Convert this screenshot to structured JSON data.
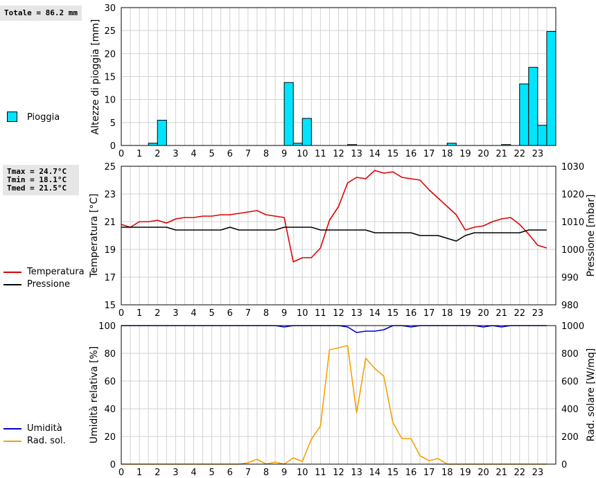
{
  "panels": {
    "rain": {
      "total_text": "Totale = 86.2 mm",
      "legend": [
        {
          "label": "Pioggia",
          "color": "#00e5ff"
        }
      ],
      "y_label": "Altezze di pioggia [mm]"
    },
    "temp": {
      "stats": [
        "Tmax = 24.7°C",
        "Tmin = 18.1°C",
        "Tmed = 21.5°C"
      ],
      "legend": [
        {
          "label": "Temperatura",
          "color": "#dd0000"
        },
        {
          "label": "Pressione",
          "color": "#000000"
        }
      ],
      "y_label_left": "Temperatura [°C]",
      "y_label_right": "Pressione [mbar]"
    },
    "hum": {
      "legend": [
        {
          "label": "Umidità",
          "color": "#0000cc"
        },
        {
          "label": "Rad. sol.",
          "color": "#f5a000"
        }
      ],
      "y_label_left": "Umidità relativa [%]",
      "y_label_right": "Rad. solare [W/mq]"
    }
  },
  "chart_data": [
    {
      "type": "bar",
      "x_ticks": [
        "0",
        "1",
        "2",
        "3",
        "4",
        "5",
        "6",
        "7",
        "8",
        "9",
        "10",
        "11",
        "12",
        "13",
        "14",
        "15",
        "16",
        "17",
        "18",
        "19",
        "20",
        "21",
        "22",
        "23"
      ],
      "xlim": [
        0,
        24
      ],
      "ylim": [
        0,
        30
      ],
      "y_ticks": [
        "0",
        "5",
        "10",
        "15",
        "20",
        "25",
        "30"
      ],
      "ylabel": "Altezze di pioggia [mm]",
      "grid": true,
      "series": [
        {
          "name": "Pioggia",
          "color": "#00e5ff",
          "x": [
            2,
            9,
            9.5,
            10,
            12.5,
            18,
            21,
            22,
            22.5,
            23,
            23.5
          ],
          "values": [
            5.5,
            13.7,
            0.5,
            5.9,
            0.2,
            0.5,
            0.2,
            13.4,
            17,
            4.4,
            24.8
          ],
          "extra_small": [
            {
              "x": 1.5,
              "value": 0.5
            }
          ]
        }
      ]
    },
    {
      "type": "line",
      "x_ticks": [
        "0",
        "1",
        "2",
        "3",
        "4",
        "5",
        "6",
        "7",
        "8",
        "9",
        "10",
        "11",
        "12",
        "13",
        "14",
        "15",
        "16",
        "17",
        "18",
        "19",
        "20",
        "21",
        "22",
        "23"
      ],
      "xlim": [
        0,
        24
      ],
      "ylim": [
        15,
        25
      ],
      "y_ticks": [
        "15",
        "17",
        "19",
        "21",
        "23",
        "25"
      ],
      "ylim_right": [
        980,
        1030
      ],
      "y_ticks_right": [
        "980",
        "990",
        "1000",
        "1010",
        "1020",
        "1030"
      ],
      "ylabel": "Temperatura [°C]",
      "ylabel_right": "Pressione [mbar]",
      "grid": true,
      "series": [
        {
          "name": "Temperatura",
          "color": "#dd0000",
          "axis": "left",
          "x": [
            0,
            0.5,
            1,
            1.5,
            2,
            2.5,
            3,
            3.5,
            4,
            4.5,
            5,
            5.5,
            6,
            6.5,
            7,
            7.5,
            8,
            8.5,
            9,
            9.5,
            10,
            10.5,
            11,
            11.5,
            12,
            12.5,
            13,
            13.5,
            14,
            14.5,
            15,
            15.5,
            16,
            16.5,
            17,
            17.5,
            18,
            18.5,
            19,
            19.5,
            20,
            20.5,
            21,
            21.5,
            22,
            22.5,
            23,
            23.5
          ],
          "values": [
            20.8,
            20.6,
            21.0,
            21.0,
            21.1,
            20.9,
            21.2,
            21.3,
            21.3,
            21.4,
            21.4,
            21.5,
            21.5,
            21.6,
            21.7,
            21.8,
            21.5,
            21.4,
            21.3,
            18.1,
            18.4,
            18.4,
            19.1,
            21.1,
            22.1,
            23.8,
            24.2,
            24.1,
            24.7,
            24.5,
            24.6,
            24.2,
            24.1,
            24.0,
            23.3,
            22.7,
            22.1,
            21.5,
            20.4,
            20.6,
            20.7,
            21.0,
            21.2,
            21.3,
            20.8,
            20.1,
            19.3,
            19.1
          ]
        },
        {
          "name": "Pressione",
          "color": "#000000",
          "axis": "right",
          "x": [
            0,
            0.5,
            1,
            1.5,
            2,
            2.5,
            3,
            3.5,
            4,
            4.5,
            5,
            5.5,
            6,
            6.5,
            7,
            7.5,
            8,
            8.5,
            9,
            9.5,
            10,
            10.5,
            11,
            11.5,
            12,
            12.5,
            13,
            13.5,
            14,
            14.5,
            15,
            15.5,
            16,
            16.5,
            17,
            17.5,
            18,
            18.5,
            19,
            19.5,
            20,
            20.5,
            21,
            21.5,
            22,
            22.5,
            23,
            23.5
          ],
          "values": [
            1008,
            1008,
            1008,
            1008,
            1008,
            1008,
            1007,
            1007,
            1007,
            1007,
            1007,
            1007,
            1008,
            1007,
            1007,
            1007,
            1007,
            1007,
            1008,
            1008,
            1008,
            1008,
            1007,
            1007,
            1007,
            1007,
            1007,
            1007,
            1006,
            1006,
            1006,
            1006,
            1006,
            1005,
            1005,
            1005,
            1004,
            1003,
            1005,
            1006,
            1006,
            1006,
            1006,
            1006,
            1006,
            1007,
            1007,
            1007
          ]
        }
      ]
    },
    {
      "type": "line",
      "x_ticks": [
        "0",
        "1",
        "2",
        "3",
        "4",
        "5",
        "6",
        "7",
        "8",
        "9",
        "10",
        "11",
        "12",
        "13",
        "14",
        "15",
        "16",
        "17",
        "18",
        "19",
        "20",
        "21",
        "22",
        "23"
      ],
      "xlim": [
        0,
        24
      ],
      "ylim": [
        0,
        100
      ],
      "y_ticks": [
        "0",
        "20",
        "40",
        "60",
        "80",
        "100"
      ],
      "ylim_right": [
        0,
        1000
      ],
      "y_ticks_right": [
        "0",
        "200",
        "400",
        "600",
        "800",
        "1000"
      ],
      "ylabel": "Umidità relativa [%]",
      "ylabel_right": "Rad. solare [W/mq]",
      "grid": true,
      "series": [
        {
          "name": "Umidità",
          "color": "#0000cc",
          "axis": "left",
          "x": [
            0,
            0.5,
            1,
            1.5,
            2,
            2.5,
            3,
            3.5,
            4,
            4.5,
            5,
            5.5,
            6,
            6.5,
            7,
            7.5,
            8,
            8.5,
            9,
            9.5,
            10,
            10.5,
            11,
            11.5,
            12,
            12.5,
            13,
            13.5,
            14,
            14.5,
            15,
            15.5,
            16,
            16.5,
            17,
            17.5,
            18,
            18.5,
            19,
            19.5,
            20,
            20.5,
            21,
            21.5,
            22,
            22.5,
            23,
            23.5
          ],
          "values": [
            100,
            100,
            100,
            100,
            100,
            100,
            100,
            100,
            100,
            100,
            100,
            100,
            100,
            100,
            100,
            100,
            100,
            100,
            99,
            100,
            100,
            100,
            100,
            100,
            100,
            99,
            95,
            96,
            96,
            97,
            100,
            100,
            99,
            100,
            100,
            100,
            100,
            100,
            100,
            100,
            99,
            100,
            99,
            100,
            100,
            100,
            100,
            100
          ]
        },
        {
          "name": "Rad. sol.",
          "color": "#f5a000",
          "axis": "right",
          "x": [
            0,
            0.5,
            1,
            1.5,
            2,
            2.5,
            3,
            3.5,
            4,
            4.5,
            5,
            5.5,
            6,
            6.5,
            7,
            7.5,
            8,
            8.5,
            9,
            9.5,
            10,
            10.5,
            11,
            11.5,
            12,
            12.5,
            13,
            13.5,
            14,
            14.5,
            15,
            15.5,
            16,
            16.5,
            17,
            17.5,
            18,
            18.5,
            19,
            19.5,
            20,
            20.5,
            21,
            21.5,
            22,
            22.5,
            23,
            23.5
          ],
          "values": [
            0,
            0,
            0,
            0,
            0,
            0,
            0,
            0,
            0,
            0,
            0,
            0,
            0,
            0,
            10,
            35,
            0,
            15,
            0,
            45,
            20,
            180,
            275,
            825,
            840,
            855,
            370,
            765,
            690,
            635,
            300,
            185,
            185,
            60,
            25,
            40,
            0,
            0,
            0,
            0,
            0,
            0,
            0,
            0,
            0,
            0,
            0,
            0
          ]
        }
      ]
    }
  ]
}
